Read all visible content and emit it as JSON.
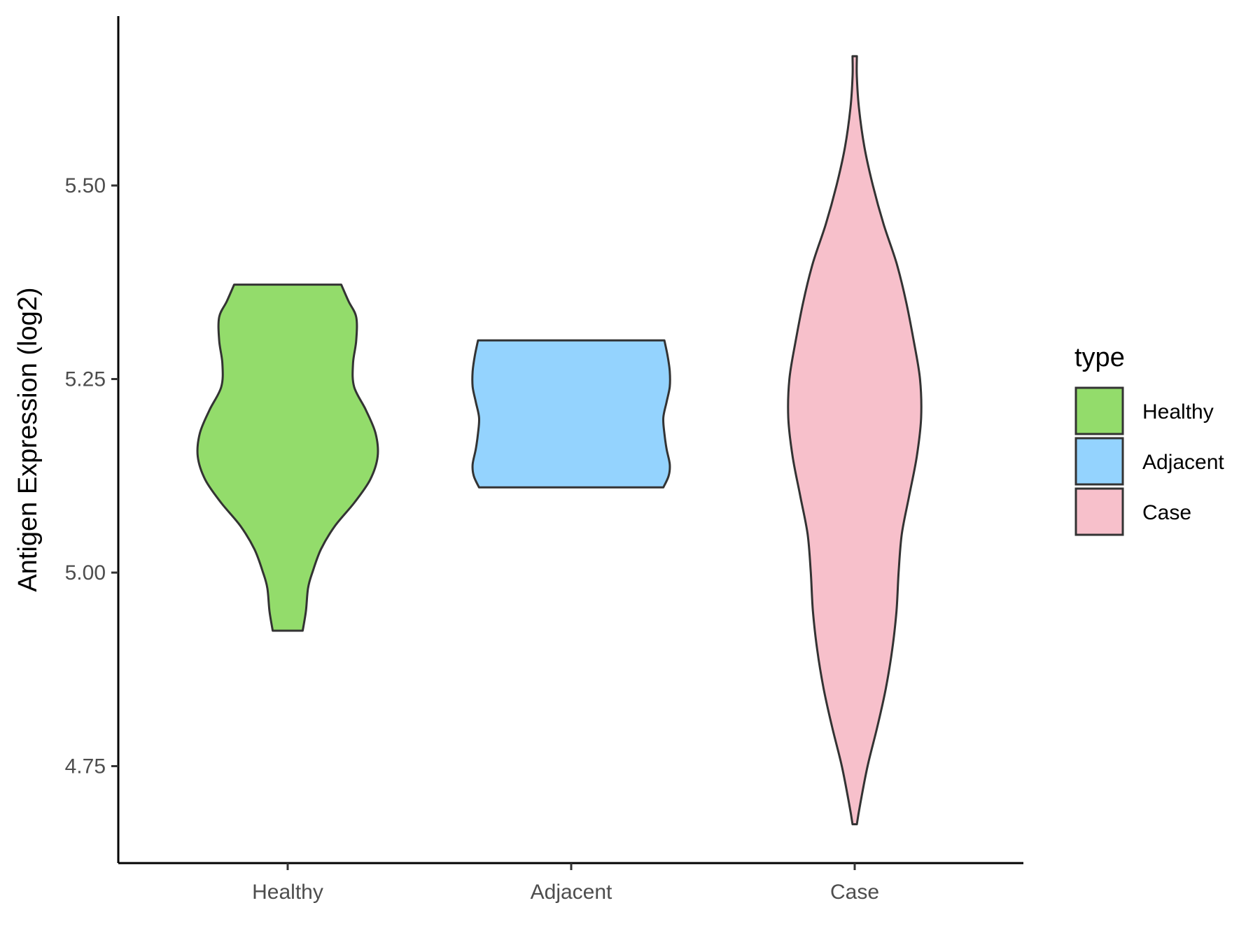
{
  "chart_data": {
    "type": "violin",
    "title": "",
    "xlabel": "",
    "ylabel": "Antigen Expression (log2)",
    "categories": [
      "Healthy",
      "Adjacent",
      "Case"
    ],
    "ylim": [
      4.625,
      5.725
    ],
    "yticks": [
      4.75,
      5.0,
      5.25,
      5.5
    ],
    "ytick_labels": [
      "4.75",
      "5.00",
      "5.25",
      "5.50"
    ],
    "grid": false,
    "legend": {
      "title": "type",
      "position": "right",
      "entries": [
        "Healthy",
        "Adjacent",
        "Case"
      ]
    },
    "colors": {
      "Healthy": "#93dc6b",
      "Adjacent": "#94d3fe",
      "Case": "#f7c0cb"
    },
    "series": [
      {
        "name": "Healthy",
        "min": 4.925,
        "max": 5.372,
        "profile": [
          [
            4.925,
            0.14
          ],
          [
            4.95,
            0.17
          ],
          [
            4.98,
            0.19
          ],
          [
            5.0,
            0.23
          ],
          [
            5.03,
            0.31
          ],
          [
            5.06,
            0.44
          ],
          [
            5.09,
            0.62
          ],
          [
            5.12,
            0.77
          ],
          [
            5.15,
            0.84
          ],
          [
            5.18,
            0.82
          ],
          [
            5.21,
            0.73
          ],
          [
            5.24,
            0.62
          ],
          [
            5.27,
            0.61
          ],
          [
            5.3,
            0.64
          ],
          [
            5.33,
            0.64
          ],
          [
            5.35,
            0.57
          ],
          [
            5.372,
            0.5
          ]
        ]
      },
      {
        "name": "Adjacent",
        "min": 5.11,
        "max": 5.3,
        "profile": [
          [
            5.11,
            0.86
          ],
          [
            5.125,
            0.91
          ],
          [
            5.14,
            0.92
          ],
          [
            5.16,
            0.89
          ],
          [
            5.18,
            0.87
          ],
          [
            5.2,
            0.86
          ],
          [
            5.22,
            0.89
          ],
          [
            5.24,
            0.92
          ],
          [
            5.26,
            0.92
          ],
          [
            5.28,
            0.9
          ],
          [
            5.3,
            0.87
          ]
        ]
      },
      {
        "name": "Case",
        "min": 4.675,
        "max": 5.667,
        "profile": [
          [
            4.675,
            0.02
          ],
          [
            4.7,
            0.05
          ],
          [
            4.75,
            0.12
          ],
          [
            4.8,
            0.21
          ],
          [
            4.85,
            0.29
          ],
          [
            4.9,
            0.35
          ],
          [
            4.95,
            0.39
          ],
          [
            5.0,
            0.41
          ],
          [
            5.05,
            0.44
          ],
          [
            5.1,
            0.51
          ],
          [
            5.15,
            0.58
          ],
          [
            5.2,
            0.62
          ],
          [
            5.25,
            0.61
          ],
          [
            5.3,
            0.55
          ],
          [
            5.35,
            0.48
          ],
          [
            5.4,
            0.39
          ],
          [
            5.45,
            0.27
          ],
          [
            5.5,
            0.17
          ],
          [
            5.55,
            0.09
          ],
          [
            5.6,
            0.04
          ],
          [
            5.64,
            0.02
          ],
          [
            5.667,
            0.02
          ]
        ]
      }
    ]
  }
}
